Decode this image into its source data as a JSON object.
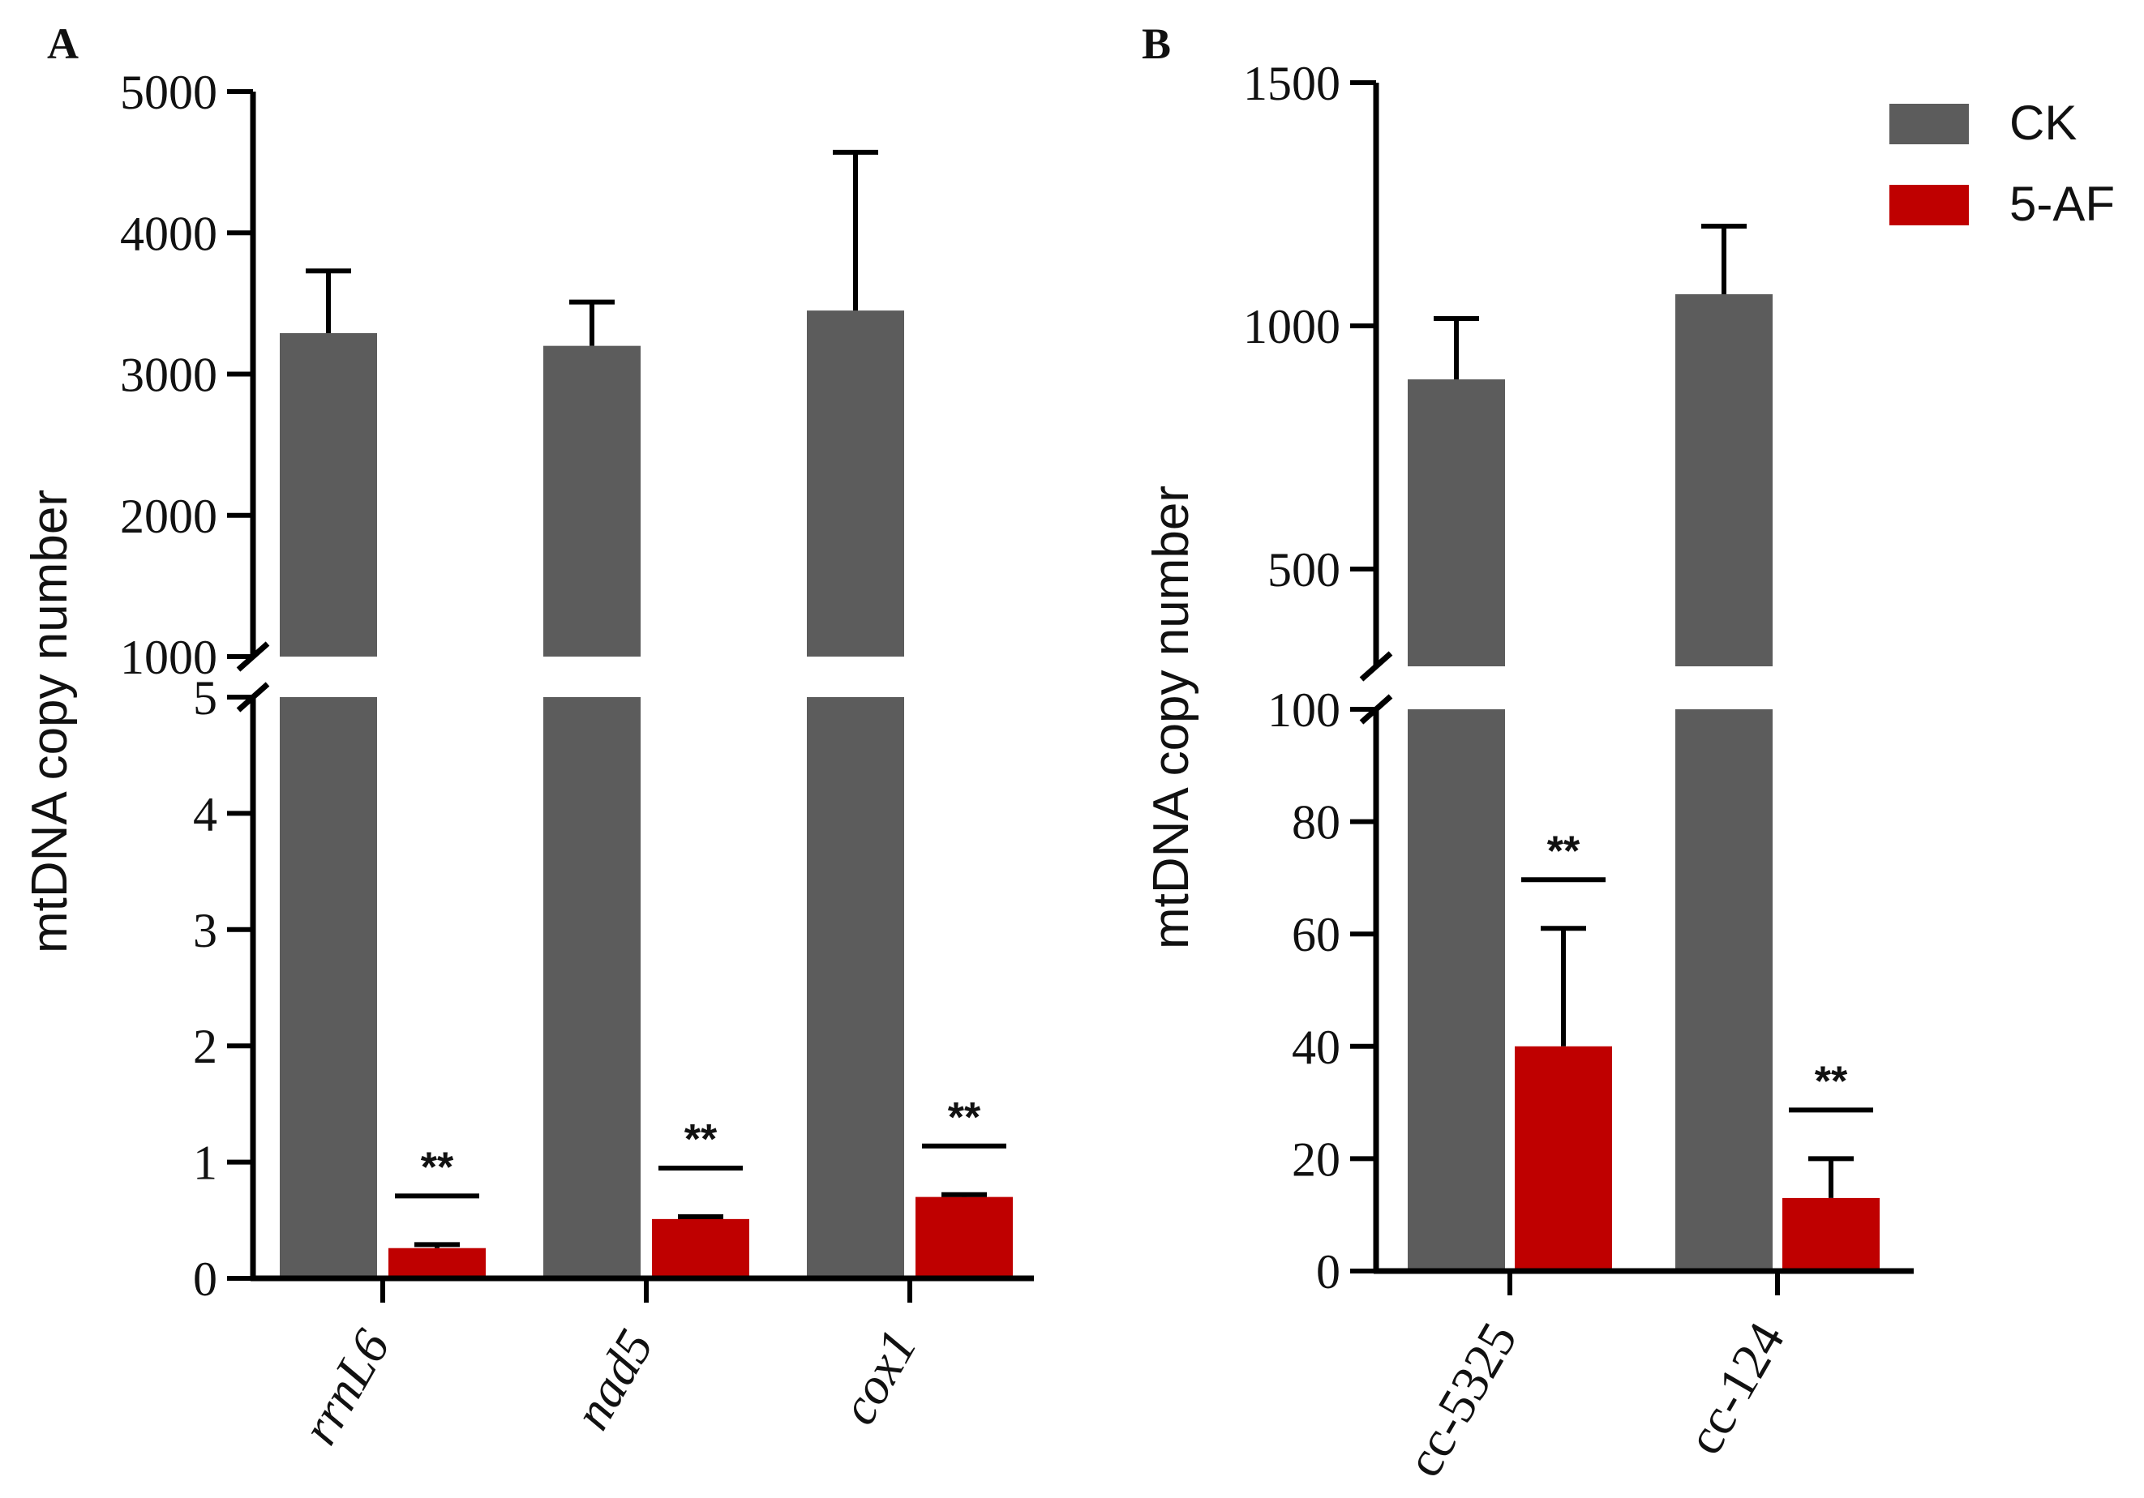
{
  "chart_data": [
    {
      "panel": "A",
      "type": "bar",
      "ylabel": "mtDNA copy number",
      "categories": [
        "rrnL6",
        "nad5",
        "cox1"
      ],
      "category_italic": true,
      "series": [
        {
          "name": "CK",
          "color": "#5c5c5c",
          "values": [
            3290,
            3200,
            3450
          ],
          "errors": [
            440,
            310,
            1120
          ]
        },
        {
          "name": "5-AF",
          "color": "#bf0000",
          "values": [
            0.26,
            0.51,
            0.7
          ],
          "errors": [
            0.03,
            0.02,
            0.02
          ]
        }
      ],
      "significance": [
        "**",
        "**",
        "**"
      ],
      "broken_axis": {
        "lower": {
          "range": [
            0,
            5
          ],
          "ticks": [
            "0",
            "1",
            "2",
            "3",
            "4",
            "5"
          ]
        },
        "upper": {
          "range": [
            1000,
            5000
          ],
          "ticks": [
            "1000",
            "2000",
            "3000",
            "4000",
            "5000"
          ]
        }
      }
    },
    {
      "panel": "B",
      "type": "bar",
      "ylabel": "mtDNA copy number",
      "categories": [
        "cc-5325",
        "cc-124"
      ],
      "category_italic": false,
      "series": [
        {
          "name": "CK",
          "color": "#5c5c5c",
          "values": [
            890,
            1065
          ],
          "errors": [
            125,
            140
          ]
        },
        {
          "name": "5-AF",
          "color": "#bf0000",
          "values": [
            40,
            13
          ],
          "errors": [
            21,
            7
          ]
        }
      ],
      "significance": [
        "**",
        "**"
      ],
      "broken_axis": {
        "lower": {
          "range": [
            0,
            100
          ],
          "ticks": [
            "0",
            "20",
            "40",
            "60",
            "80",
            "100"
          ]
        },
        "upper": {
          "range": [
            300,
            1500
          ],
          "ticks": [
            "500",
            "1000",
            "1500"
          ]
        }
      }
    }
  ],
  "legend": [
    {
      "label": "CK",
      "color": "#5c5c5c"
    },
    {
      "label": "5-AF",
      "color": "#bf0000"
    }
  ]
}
